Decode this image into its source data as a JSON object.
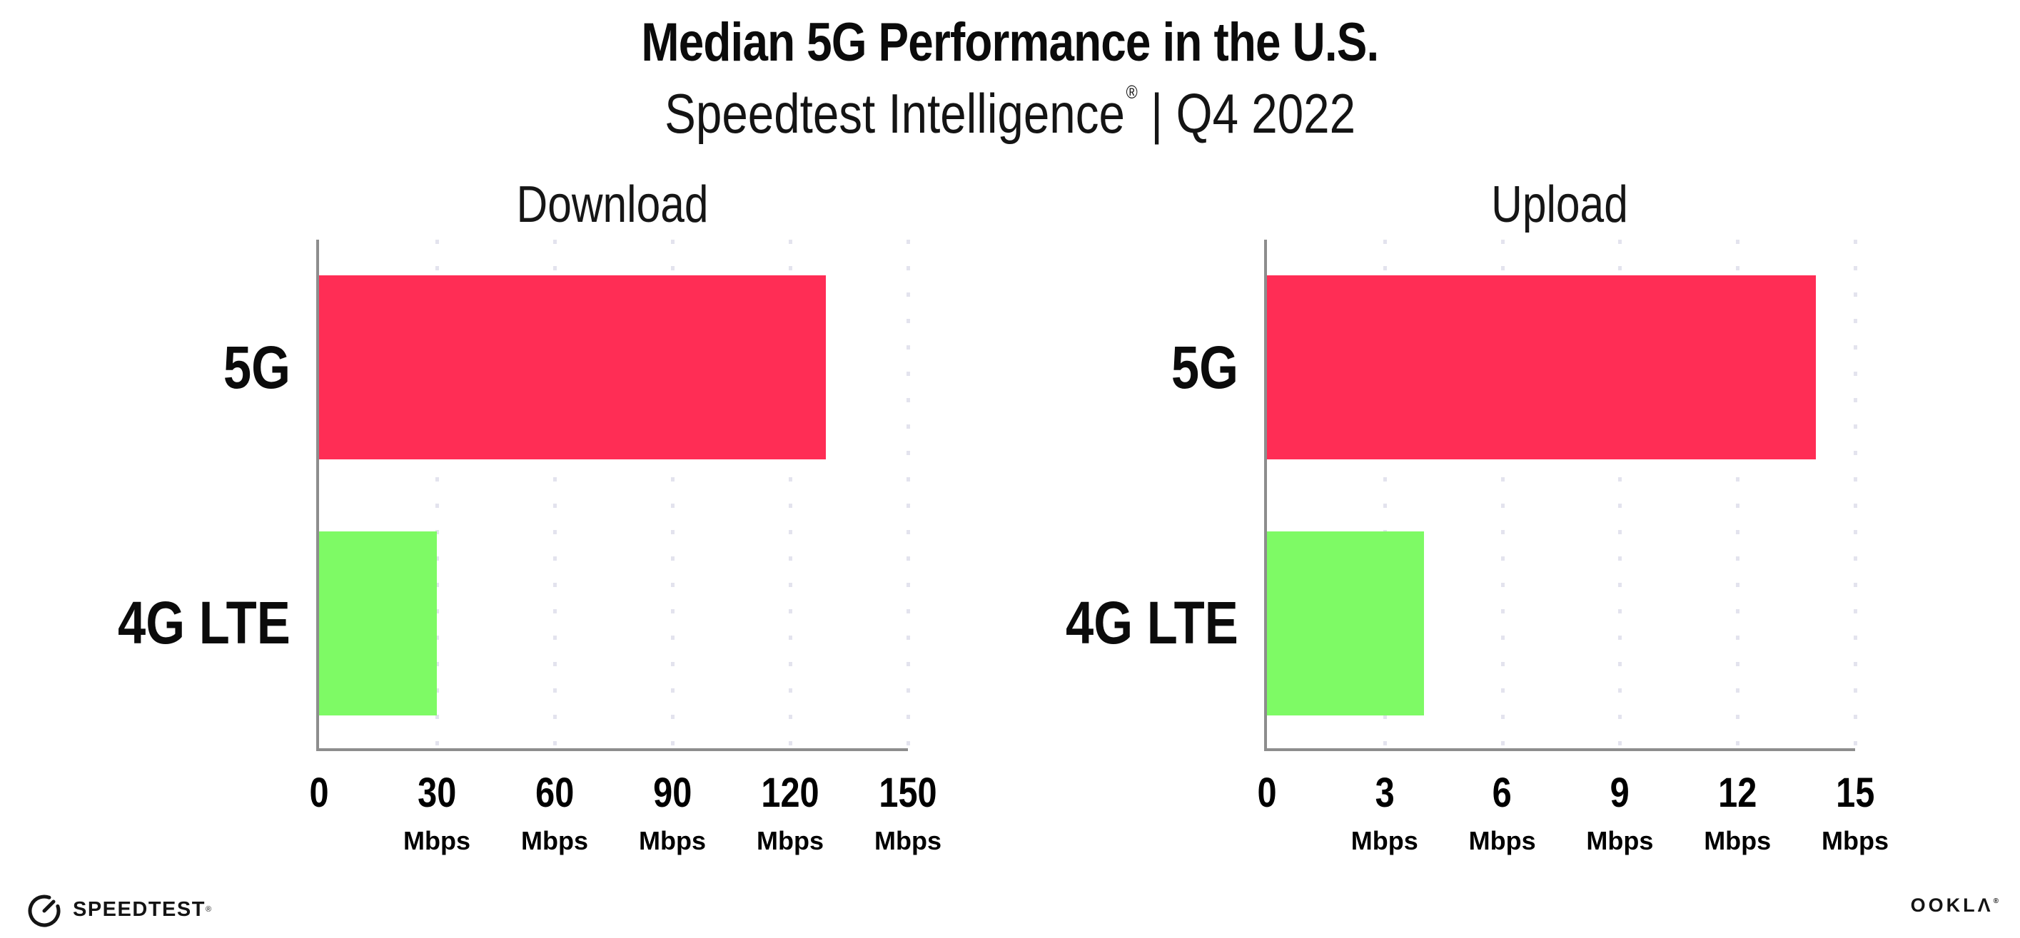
{
  "header": {
    "title": "Median 5G Performance in the U.S.",
    "subtitle": {
      "brand": "Speedtest Intelligence",
      "registered_mark": "®",
      "separator": "|",
      "period": "Q4 2022"
    }
  },
  "chart_data": [
    {
      "type": "bar",
      "orientation": "horizontal",
      "title": "Download",
      "categories": [
        "5G",
        "4G LTE"
      ],
      "values": [
        129,
        30
      ],
      "unit": "Mbps",
      "xlabel": "Mbps",
      "ylabel": "",
      "xlim": [
        0,
        150
      ],
      "xticks": [
        0,
        30,
        60,
        90,
        120,
        150
      ],
      "bar_colors": [
        "#ff2d55",
        "#7efa65"
      ],
      "grid": "vertical-dotted",
      "legend": "none"
    },
    {
      "type": "bar",
      "orientation": "horizontal",
      "title": "Upload",
      "categories": [
        "5G",
        "4G LTE"
      ],
      "values": [
        14,
        4
      ],
      "unit": "Mbps",
      "xlabel": "Mbps",
      "ylabel": "",
      "xlim": [
        0,
        15
      ],
      "xticks": [
        0,
        3,
        6,
        9,
        12,
        15
      ],
      "bar_colors": [
        "#ff2d55",
        "#7efa65"
      ],
      "grid": "vertical-dotted",
      "legend": "none"
    }
  ],
  "footer": {
    "speedtest_wordmark": "SPEEDTEST",
    "speedtest_mark": "®",
    "ookla_wordmark": "OOKLΛ",
    "ookla_mark": "®"
  },
  "colors": {
    "bar_5g": "#ff2d55",
    "bar_4g_lte": "#7efa65",
    "gridline": "#e3e3ee",
    "axis": "#8d8d8d",
    "text": "#0d0d0d"
  }
}
